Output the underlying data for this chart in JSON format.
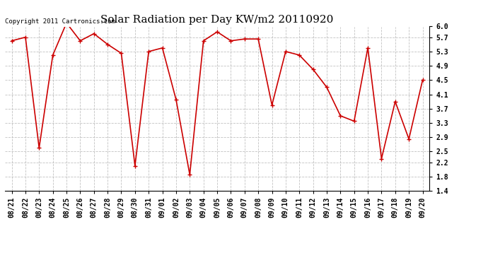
{
  "title": "Solar Radiation per Day KW/m2 20110920",
  "copyright": "Copyright 2011 Cartronics.com",
  "dates": [
    "08/21",
    "08/22",
    "08/23",
    "08/24",
    "08/25",
    "08/26",
    "08/27",
    "08/28",
    "08/29",
    "08/30",
    "08/31",
    "09/01",
    "09/02",
    "09/03",
    "09/04",
    "09/05",
    "09/06",
    "09/07",
    "09/08",
    "09/09",
    "09/10",
    "09/11",
    "09/12",
    "09/13",
    "09/14",
    "09/15",
    "09/16",
    "09/17",
    "09/18",
    "09/19",
    "09/20"
  ],
  "values": [
    5.6,
    5.7,
    2.6,
    5.2,
    6.1,
    5.6,
    5.8,
    5.5,
    5.25,
    2.1,
    5.3,
    5.4,
    3.95,
    1.85,
    5.6,
    5.85,
    5.6,
    5.65,
    5.65,
    3.8,
    5.3,
    5.2,
    4.8,
    4.3,
    3.5,
    3.35,
    5.4,
    2.3,
    3.9,
    2.85,
    4.5
  ],
  "line_color": "#cc0000",
  "marker_color": "#cc0000",
  "bg_color": "#ffffff",
  "plot_bg_color": "#ffffff",
  "grid_color": "#bbbbbb",
  "ylim": [
    1.4,
    6.0
  ],
  "yticks": [
    1.4,
    1.8,
    2.2,
    2.5,
    2.9,
    3.3,
    3.7,
    4.1,
    4.5,
    4.9,
    5.3,
    5.7,
    6.0
  ],
  "title_fontsize": 11,
  "tick_fontsize": 7,
  "copyright_fontsize": 6.5
}
